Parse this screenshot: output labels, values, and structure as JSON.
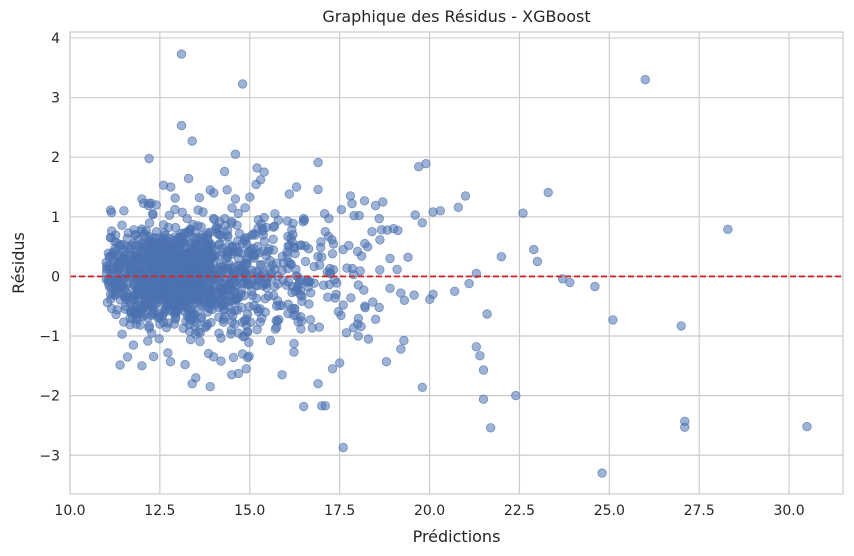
{
  "chart_data": {
    "type": "scatter",
    "title": "Graphique des Résidus - XGBoost",
    "xlabel": "Prédictions",
    "ylabel": "Résidus",
    "xlim": [
      10.0,
      31.5
    ],
    "ylim": [
      -3.65,
      4.1
    ],
    "xticks": [
      10.0,
      12.5,
      15.0,
      17.5,
      20.0,
      22.5,
      25.0,
      27.5,
      30.0
    ],
    "xtick_labels": [
      "10.0",
      "12.5",
      "15.0",
      "17.5",
      "20.0",
      "22.5",
      "25.0",
      "27.5",
      "30.0"
    ],
    "yticks": [
      -3,
      -2,
      -1,
      0,
      1,
      2,
      3,
      4
    ],
    "ytick_labels": [
      "−3",
      "−2",
      "−1",
      "0",
      "1",
      "2",
      "3",
      "4"
    ],
    "grid": true,
    "point_color": "#4C72B0",
    "reference_line": {
      "y": 0,
      "color": "#d62728",
      "style": "dashed"
    },
    "points": [
      [
        13.1,
        3.73
      ],
      [
        14.8,
        3.23
      ],
      [
        26.0,
        3.3
      ],
      [
        13.1,
        2.53
      ],
      [
        13.4,
        2.27
      ],
      [
        14.6,
        2.05
      ],
      [
        12.2,
        1.98
      ],
      [
        16.9,
        1.91
      ],
      [
        19.9,
        1.89
      ],
      [
        19.7,
        1.84
      ],
      [
        15.2,
        1.82
      ],
      [
        15.4,
        1.75
      ],
      [
        14.3,
        1.76
      ],
      [
        13.3,
        1.64
      ],
      [
        15.3,
        1.62
      ],
      [
        12.6,
        1.53
      ],
      [
        12.8,
        1.5
      ],
      [
        16.3,
        1.5
      ],
      [
        13.9,
        1.45
      ],
      [
        16.9,
        1.46
      ],
      [
        23.3,
        1.41
      ],
      [
        14.0,
        1.4
      ],
      [
        16.1,
        1.38
      ],
      [
        17.8,
        1.35
      ],
      [
        21.0,
        1.35
      ],
      [
        15.0,
        1.33
      ],
      [
        12.0,
        1.3
      ],
      [
        13.6,
        1.32
      ],
      [
        14.6,
        1.3
      ],
      [
        18.7,
        1.25
      ],
      [
        18.5,
        1.19
      ],
      [
        20.8,
        1.16
      ],
      [
        12.4,
        1.2
      ],
      [
        11.5,
        1.1
      ],
      [
        20.3,
        1.1
      ],
      [
        20.1,
        1.08
      ],
      [
        22.6,
        1.06
      ],
      [
        19.6,
        1.03
      ],
      [
        18.6,
        0.97
      ],
      [
        17.2,
        0.97
      ],
      [
        12.3,
        1.05
      ],
      [
        13.7,
        1.08
      ],
      [
        15.7,
        1.05
      ],
      [
        16.5,
        0.97
      ],
      [
        19.8,
        0.9
      ],
      [
        14.5,
        0.92
      ],
      [
        18.4,
        0.75
      ],
      [
        19.0,
        0.8
      ],
      [
        28.3,
        0.79
      ],
      [
        17.1,
        0.75
      ],
      [
        22.9,
        0.45
      ],
      [
        16.2,
        0.7
      ],
      [
        18.2,
        0.55
      ],
      [
        22.0,
        0.33
      ],
      [
        18.9,
        0.3
      ],
      [
        23.0,
        0.25
      ],
      [
        19.4,
        0.32
      ],
      [
        18.0,
        0.42
      ],
      [
        17.6,
        0.45
      ],
      [
        17.3,
        0.38
      ],
      [
        21.3,
        0.05
      ],
      [
        23.7,
        -0.04
      ],
      [
        23.9,
        -0.1
      ],
      [
        24.6,
        -0.17
      ],
      [
        21.1,
        -0.12
      ],
      [
        20.7,
        -0.25
      ],
      [
        20.1,
        -0.3
      ],
      [
        19.3,
        -0.4
      ],
      [
        19.2,
        -0.28
      ],
      [
        18.9,
        -0.2
      ],
      [
        18.6,
        -0.52
      ],
      [
        18.2,
        -0.5
      ],
      [
        18.0,
        -0.8
      ],
      [
        17.6,
        -0.48
      ],
      [
        17.4,
        -0.3
      ],
      [
        21.6,
        -0.63
      ],
      [
        25.1,
        -0.73
      ],
      [
        27.0,
        -0.83
      ],
      [
        18.5,
        -0.72
      ],
      [
        18.3,
        -1.05
      ],
      [
        17.5,
        -1.45
      ],
      [
        17.3,
        -1.55
      ],
      [
        19.2,
        -1.22
      ],
      [
        21.3,
        -1.18
      ],
      [
        21.4,
        -1.33
      ],
      [
        18.8,
        -1.43
      ],
      [
        21.5,
        -1.57
      ],
      [
        19.8,
        -1.86
      ],
      [
        22.4,
        -2.0
      ],
      [
        21.5,
        -2.06
      ],
      [
        16.5,
        -2.18
      ],
      [
        17.1,
        -2.17
      ],
      [
        17.0,
        -2.17
      ],
      [
        21.7,
        -2.54
      ],
      [
        17.6,
        -2.87
      ],
      [
        27.1,
        -2.43
      ],
      [
        27.1,
        -2.53
      ],
      [
        30.5,
        -2.52
      ],
      [
        24.8,
        -3.3
      ],
      [
        16.9,
        -1.8
      ],
      [
        15.9,
        -1.65
      ],
      [
        14.9,
        -1.55
      ],
      [
        14.5,
        -1.65
      ],
      [
        13.4,
        -1.8
      ],
      [
        13.5,
        -1.7
      ],
      [
        13.9,
        -1.85
      ],
      [
        12.0,
        -1.5
      ],
      [
        11.6,
        -1.35
      ],
      [
        13.2,
        -1.48
      ],
      [
        14.2,
        -1.42
      ]
    ],
    "cluster_blobs": [
      {
        "cx": 12.7,
        "cy": 0.0,
        "sx": 0.85,
        "sy": 0.38,
        "n": 900
      },
      {
        "cx": 14.0,
        "cy": 0.0,
        "sx": 1.3,
        "sy": 0.55,
        "n": 380
      },
      {
        "cx": 16.0,
        "cy": 0.0,
        "sx": 1.4,
        "sy": 0.65,
        "n": 170
      }
    ]
  }
}
